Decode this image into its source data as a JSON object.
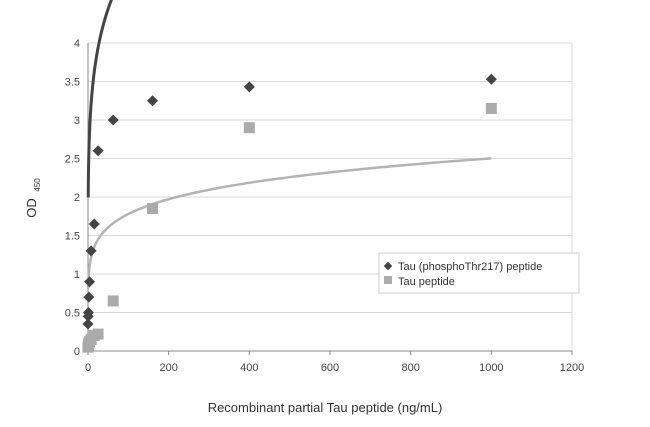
{
  "chart_data": {
    "type": "scatter",
    "xlabel": "Recombinant partial Tau peptide (ng/mL)",
    "ylabel": "OD",
    "ylabel_sub": "450",
    "xlim": [
      0,
      1200
    ],
    "ylim": [
      0,
      4
    ],
    "xticks": [
      0,
      200,
      400,
      600,
      800,
      1000,
      1200
    ],
    "yticks": [
      0,
      0.5,
      1,
      1.5,
      2,
      2.5,
      3,
      3.5,
      4
    ],
    "ytick_labels": [
      "0",
      "0.5",
      "1",
      "1.5",
      "2",
      "2.5",
      "3",
      "3.5",
      "4"
    ],
    "grid": true,
    "legend_position": "right",
    "series": [
      {
        "name": "Tau (phosphoThr217) peptide",
        "marker": "diamond",
        "color": "#444444",
        "x": [
          0,
          0.5,
          1,
          2,
          3.9,
          7.8,
          15.6,
          25,
          62.5,
          160,
          400,
          1000
        ],
        "y": [
          0.35,
          0.45,
          0.5,
          0.7,
          0.9,
          1.3,
          1.65,
          2.6,
          3.0,
          3.25,
          3.43,
          3.53
        ],
        "trend": {
          "a": 2.25,
          "b": 0.174
        }
      },
      {
        "name": "Tau peptide",
        "marker": "square",
        "color": "#aaaaaa",
        "x": [
          0,
          1,
          2,
          3.9,
          7.8,
          15.6,
          25,
          62.5,
          160,
          400,
          1000
        ],
        "y": [
          0.05,
          0.08,
          0.1,
          0.12,
          0.15,
          0.2,
          0.22,
          0.65,
          1.85,
          2.9,
          3.15
        ],
        "trend": {
          "a": 0.9,
          "b": 0.148
        }
      }
    ]
  }
}
